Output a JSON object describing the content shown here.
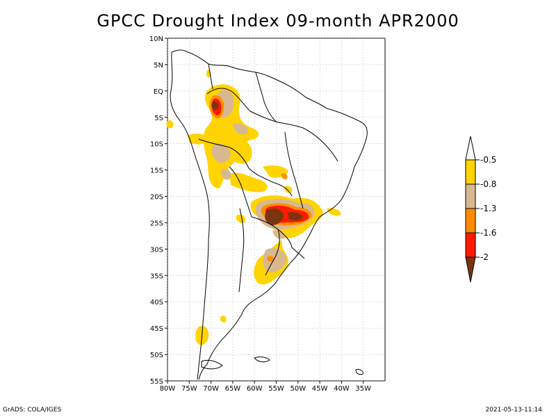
{
  "title": "GPCC Drought Index 09-month APR2000",
  "map": {
    "lon_range": [
      -80,
      -30
    ],
    "lat_range": [
      -55,
      10
    ],
    "lat_labels": [
      "10N",
      "5N",
      "EQ",
      "5S",
      "10S",
      "15S",
      "20S",
      "25S",
      "30S",
      "35S",
      "40S",
      "45S",
      "50S",
      "55S"
    ],
    "lon_labels": [
      "80W",
      "75W",
      "70W",
      "65W",
      "60W",
      "55W",
      "50W",
      "45W",
      "40W",
      "35W"
    ],
    "grid": true
  },
  "legend": {
    "thresholds": [
      "-0.5",
      "-0.8",
      "-1.3",
      "-1.6",
      "-2"
    ],
    "colors": {
      "above": "#ffffff",
      "band1": "#ffd400",
      "band2": "#d8b890",
      "band3": "#ff8c00",
      "band4": "#ff1a00",
      "below": "#7a3510"
    }
  },
  "footer": {
    "left": "GrADS: COLA/IGES",
    "right": "2021-05-13-11:14"
  }
}
